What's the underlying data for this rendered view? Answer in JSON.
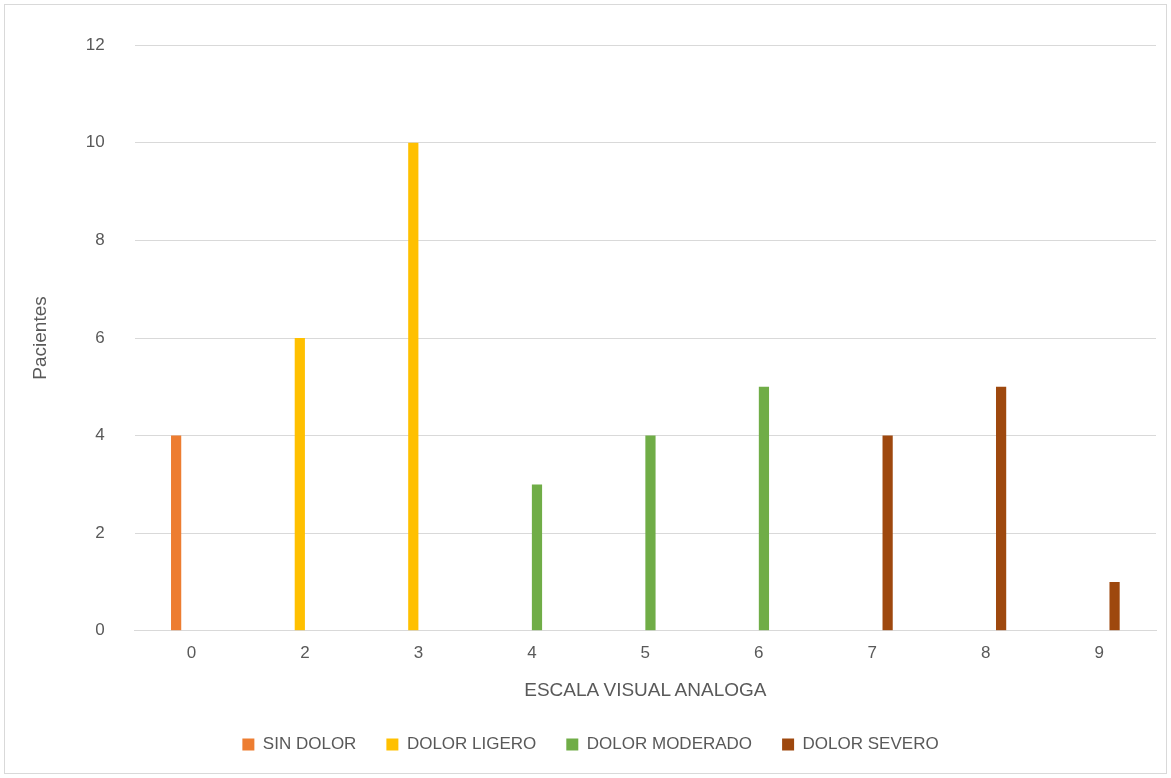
{
  "chart_data": {
    "type": "bar",
    "xlabel": "ESCALA VISUAL ANALOGA",
    "ylabel": "Pacientes",
    "categories": [
      "0",
      "2",
      "3",
      "4",
      "5",
      "6",
      "7",
      "8",
      "9"
    ],
    "series": [
      {
        "name": "SIN DOLOR",
        "color": "#ed7d31",
        "values": [
          4,
          null,
          null,
          null,
          null,
          null,
          null,
          null,
          null
        ]
      },
      {
        "name": "DOLOR LIGERO",
        "color": "#ffc000",
        "values": [
          null,
          6,
          10,
          null,
          null,
          null,
          null,
          null,
          null
        ]
      },
      {
        "name": "DOLOR MODERADO",
        "color": "#70ad47",
        "values": [
          null,
          null,
          null,
          3,
          4,
          5,
          null,
          null,
          null
        ]
      },
      {
        "name": "DOLOR SEVERO",
        "color": "#9e480e",
        "values": [
          null,
          null,
          null,
          null,
          null,
          null,
          4,
          5,
          1
        ]
      }
    ],
    "ylim": [
      0,
      12
    ],
    "yticks": [
      0,
      2,
      4,
      6,
      8,
      10,
      12
    ],
    "grid": "y",
    "legend": "bottom"
  }
}
